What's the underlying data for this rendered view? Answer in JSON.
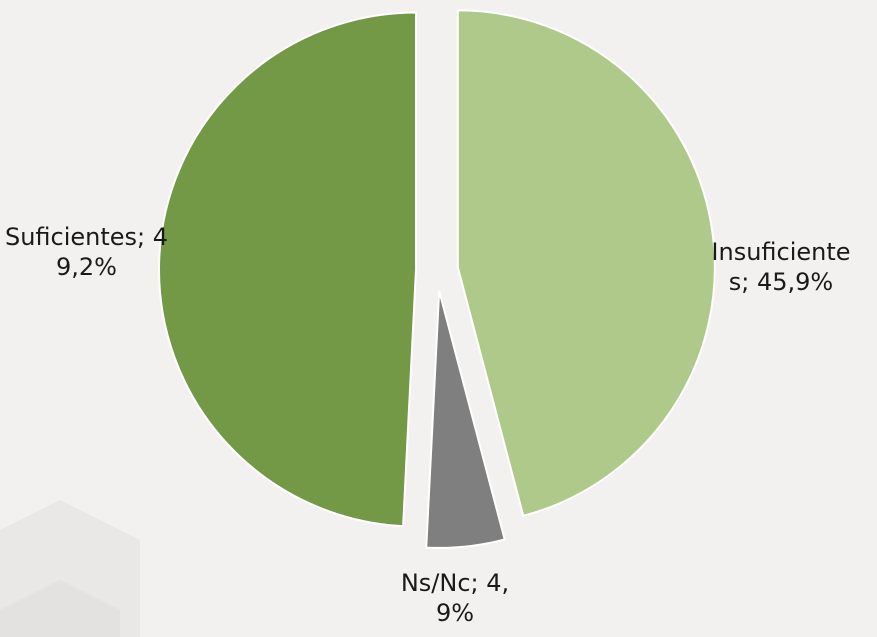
{
  "chart_data": {
    "type": "pie",
    "values": [
      45.9,
      4.9,
      49.2
    ],
    "value_labels": [
      "Insuficientes; 45,9%",
      "Ns/Nc; 4,9%",
      "Suficientes; 49,2%"
    ],
    "colors": [
      "#aec98a",
      "#7f7f7f",
      "#739846"
    ]
  }
}
